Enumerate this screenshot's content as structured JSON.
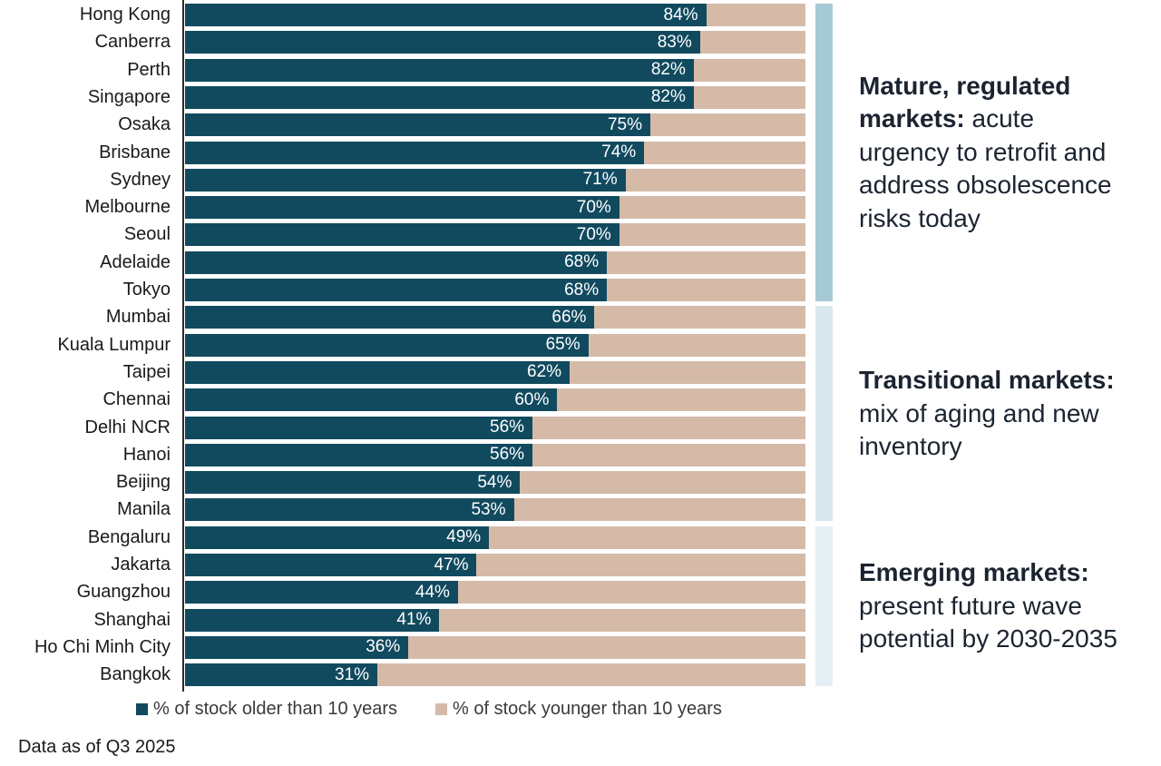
{
  "chart_data": {
    "type": "bar",
    "orientation": "horizontal",
    "stacked": true,
    "xlim": [
      0,
      100
    ],
    "unit": "%",
    "grid": false,
    "categories": [
      "Hong Kong",
      "Canberra",
      "Perth",
      "Singapore",
      "Osaka",
      "Brisbane",
      "Sydney",
      "Melbourne",
      "Seoul",
      "Adelaide",
      "Tokyo",
      "Mumbai",
      "Kuala Lumpur",
      "Taipei",
      "Chennai",
      "Delhi NCR",
      "Hanoi",
      "Beijing",
      "Manila",
      "Bengaluru",
      "Jakarta",
      "Guangzhou",
      "Shanghai",
      "Ho Chi Minh City",
      "Bangkok"
    ],
    "series": [
      {
        "name": "% of stock older than 10 years",
        "color": "#114A5F",
        "values": [
          84,
          83,
          82,
          82,
          75,
          74,
          71,
          70,
          70,
          68,
          68,
          66,
          65,
          62,
          60,
          56,
          56,
          54,
          53,
          49,
          47,
          44,
          41,
          36,
          31
        ]
      },
      {
        "name": "% of stock younger than 10 years",
        "color": "#D5BAA8",
        "values": [
          16,
          17,
          18,
          18,
          25,
          26,
          29,
          30,
          30,
          32,
          32,
          34,
          35,
          38,
          40,
          44,
          44,
          46,
          47,
          51,
          53,
          56,
          59,
          64,
          69
        ]
      }
    ],
    "value_label_format": "{value}%",
    "value_label_color": "#FFFFFF",
    "legend_position": "bottom"
  },
  "groups": [
    {
      "id": "mature",
      "rows": [
        0,
        10
      ],
      "strip_color": "#A6CAD6",
      "annotation": {
        "bold": "Mature, regulated\nmarkets:",
        "rest": " acute\nurgency to retrofit and\naddress obsolescence\nrisks today"
      }
    },
    {
      "id": "transitional",
      "rows": [
        11,
        18
      ],
      "strip_color": "#D8E8ED",
      "annotation": {
        "bold": "Transitional markets:",
        "rest": "\nmix of aging and new\ninventory"
      }
    },
    {
      "id": "emerging",
      "rows": [
        19,
        24
      ],
      "strip_color": "#E5EFF3",
      "annotation": {
        "bold": "Emerging markets:",
        "rest": "\npresent future wave\npotential by 2030-2035"
      }
    }
  ],
  "legend": {
    "items": [
      {
        "label": "% of stock older than 10 years",
        "color": "#114A5F"
      },
      {
        "label": "% of stock younger than 10 years",
        "color": "#D5BAA8"
      }
    ]
  },
  "footer": {
    "text": "Data as of Q3 2025"
  },
  "colors": {
    "axis": "#2B2B2B",
    "city_label_text": "#1A1A1A",
    "annotation_text": "#1B2430",
    "legend_text": "#3A3A3A"
  }
}
